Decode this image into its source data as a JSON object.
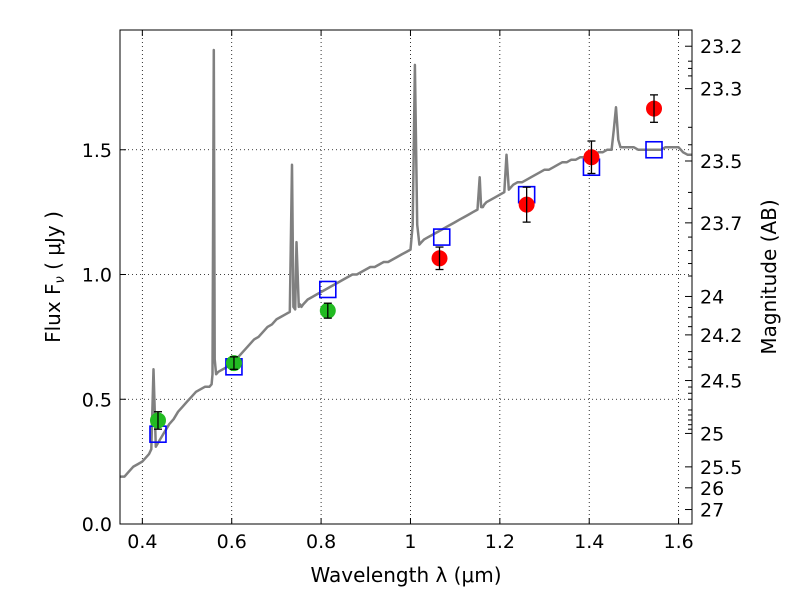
{
  "chart_data": {
    "type": "scatter",
    "xlabel": "Wavelength  λ (μm)",
    "ylabel": "Flux  F",
    "ylabel_sub": "ν",
    "ylabel_unit": "  ( μJy )",
    "y2label": "Magnitude (AB)",
    "xlim": [
      0.35,
      1.63
    ],
    "ylim": [
      0.0,
      1.98
    ],
    "grid": true,
    "grid_style": "dotted",
    "xticks": [
      0.4,
      0.6,
      0.8,
      1.0,
      1.2,
      1.4,
      1.6
    ],
    "xtick_labels": [
      "0.4",
      "0.6",
      "0.8",
      "1",
      "1.2",
      "1.4",
      "1.6"
    ],
    "yticks": [
      0.0,
      0.5,
      1.0,
      1.5
    ],
    "ytick_labels": [
      "0.0",
      "0.5",
      "1.0",
      "1.5"
    ],
    "y2ticks": [
      {
        "flux": 1.915,
        "label": "23.2"
      },
      {
        "flux": 1.745,
        "label": "23.3"
      },
      {
        "flux": 1.455,
        "label": "23.5"
      },
      {
        "flux": 1.207,
        "label": "23.7"
      },
      {
        "flux": 0.912,
        "label": "24"
      },
      {
        "flux": 0.758,
        "label": "24.2"
      },
      {
        "flux": 0.575,
        "label": "24.5"
      },
      {
        "flux": 0.363,
        "label": "25"
      },
      {
        "flux": 0.229,
        "label": "25.5"
      },
      {
        "flux": 0.145,
        "label": "26"
      },
      {
        "flux": 0.058,
        "label": "27"
      }
    ],
    "y2minor": [
      1.855,
      1.826,
      1.796,
      1.59,
      1.52,
      1.329,
      1.265,
      1.15,
      1.096,
      1.044,
      0.994,
      0.868,
      0.83,
      0.791,
      0.691,
      0.66,
      0.629,
      0.549,
      0.524,
      0.5,
      0.457,
      0.437,
      0.417,
      0.398,
      0.38
    ],
    "series": [
      {
        "kind": "spectrum",
        "color": "#808080",
        "x": [
          0.35,
          0.36,
          0.37,
          0.38,
          0.39,
          0.4,
          0.41,
          0.415,
          0.42,
          0.425,
          0.43,
          0.44,
          0.45,
          0.46,
          0.47,
          0.48,
          0.49,
          0.5,
          0.51,
          0.52,
          0.53,
          0.54,
          0.55,
          0.555,
          0.557,
          0.56,
          0.562,
          0.565,
          0.57,
          0.58,
          0.59,
          0.6,
          0.61,
          0.62,
          0.63,
          0.64,
          0.65,
          0.66,
          0.67,
          0.68,
          0.69,
          0.7,
          0.71,
          0.72,
          0.73,
          0.735,
          0.738,
          0.742,
          0.745,
          0.75,
          0.753,
          0.756,
          0.76,
          0.77,
          0.78,
          0.79,
          0.8,
          0.81,
          0.82,
          0.83,
          0.84,
          0.85,
          0.86,
          0.87,
          0.88,
          0.89,
          0.9,
          0.91,
          0.92,
          0.93,
          0.94,
          0.95,
          0.96,
          0.97,
          0.98,
          0.99,
          1.0,
          1.005,
          1.01,
          1.015,
          1.02,
          1.025,
          1.03,
          1.04,
          1.05,
          1.06,
          1.07,
          1.08,
          1.09,
          1.1,
          1.11,
          1.12,
          1.13,
          1.14,
          1.15,
          1.155,
          1.158,
          1.162,
          1.165,
          1.17,
          1.18,
          1.19,
          1.2,
          1.21,
          1.215,
          1.22,
          1.225,
          1.23,
          1.24,
          1.25,
          1.26,
          1.27,
          1.28,
          1.29,
          1.3,
          1.31,
          1.32,
          1.33,
          1.34,
          1.35,
          1.36,
          1.37,
          1.38,
          1.39,
          1.4,
          1.41,
          1.42,
          1.43,
          1.44,
          1.45,
          1.455,
          1.46,
          1.465,
          1.47,
          1.48,
          1.49,
          1.5,
          1.51,
          1.52,
          1.53,
          1.54,
          1.55,
          1.56,
          1.57,
          1.58,
          1.59,
          1.6,
          1.61,
          1.62,
          1.63
        ],
        "y": [
          0.19,
          0.19,
          0.21,
          0.23,
          0.24,
          0.25,
          0.27,
          0.28,
          0.3,
          0.62,
          0.31,
          0.34,
          0.37,
          0.4,
          0.42,
          0.45,
          0.47,
          0.49,
          0.51,
          0.53,
          0.54,
          0.55,
          0.55,
          0.56,
          0.6,
          1.9,
          0.66,
          0.6,
          0.61,
          0.62,
          0.63,
          0.65,
          0.66,
          0.68,
          0.7,
          0.72,
          0.74,
          0.75,
          0.77,
          0.79,
          0.8,
          0.82,
          0.83,
          0.84,
          0.85,
          1.44,
          0.87,
          0.86,
          1.13,
          0.87,
          0.88,
          0.87,
          0.88,
          0.9,
          0.91,
          0.92,
          0.93,
          0.94,
          0.95,
          0.96,
          0.97,
          0.98,
          0.99,
          1.0,
          1.0,
          1.01,
          1.02,
          1.03,
          1.03,
          1.04,
          1.05,
          1.05,
          1.06,
          1.07,
          1.08,
          1.09,
          1.1,
          1.2,
          1.84,
          1.2,
          1.12,
          1.13,
          1.14,
          1.15,
          1.16,
          1.17,
          1.18,
          1.19,
          1.2,
          1.21,
          1.22,
          1.23,
          1.24,
          1.25,
          1.26,
          1.39,
          1.27,
          1.27,
          1.28,
          1.29,
          1.3,
          1.31,
          1.32,
          1.33,
          1.48,
          1.34,
          1.35,
          1.36,
          1.37,
          1.37,
          1.38,
          1.39,
          1.4,
          1.41,
          1.42,
          1.42,
          1.43,
          1.44,
          1.45,
          1.45,
          1.46,
          1.46,
          1.47,
          1.47,
          1.48,
          1.48,
          1.49,
          1.49,
          1.5,
          1.5,
          1.58,
          1.67,
          1.54,
          1.51,
          1.51,
          1.51,
          1.51,
          1.5,
          1.5,
          1.5,
          1.5,
          1.5,
          1.5,
          1.51,
          1.51,
          1.51,
          1.51,
          1.49,
          1.48,
          1.48
        ]
      },
      {
        "kind": "model-photometry",
        "marker": "open-square",
        "color": "#0000ff",
        "x": [
          0.435,
          0.605,
          0.815,
          1.07,
          1.26,
          1.405,
          1.545
        ],
        "y": [
          0.36,
          0.63,
          0.94,
          1.15,
          1.32,
          1.43,
          1.5
        ]
      },
      {
        "kind": "observed-optical",
        "marker": "filled-circle",
        "color": "#22bb22",
        "x": [
          0.435,
          0.605,
          0.815
        ],
        "y": [
          0.415,
          0.645,
          0.855
        ],
        "err": [
          0.035,
          0.025,
          0.03
        ]
      },
      {
        "kind": "observed-nir",
        "marker": "filled-circle",
        "color": "#ff0000",
        "x": [
          1.065,
          1.26,
          1.405,
          1.545
        ],
        "y": [
          1.065,
          1.28,
          1.47,
          1.665
        ],
        "err": [
          0.045,
          0.07,
          0.065,
          0.055
        ]
      }
    ]
  }
}
